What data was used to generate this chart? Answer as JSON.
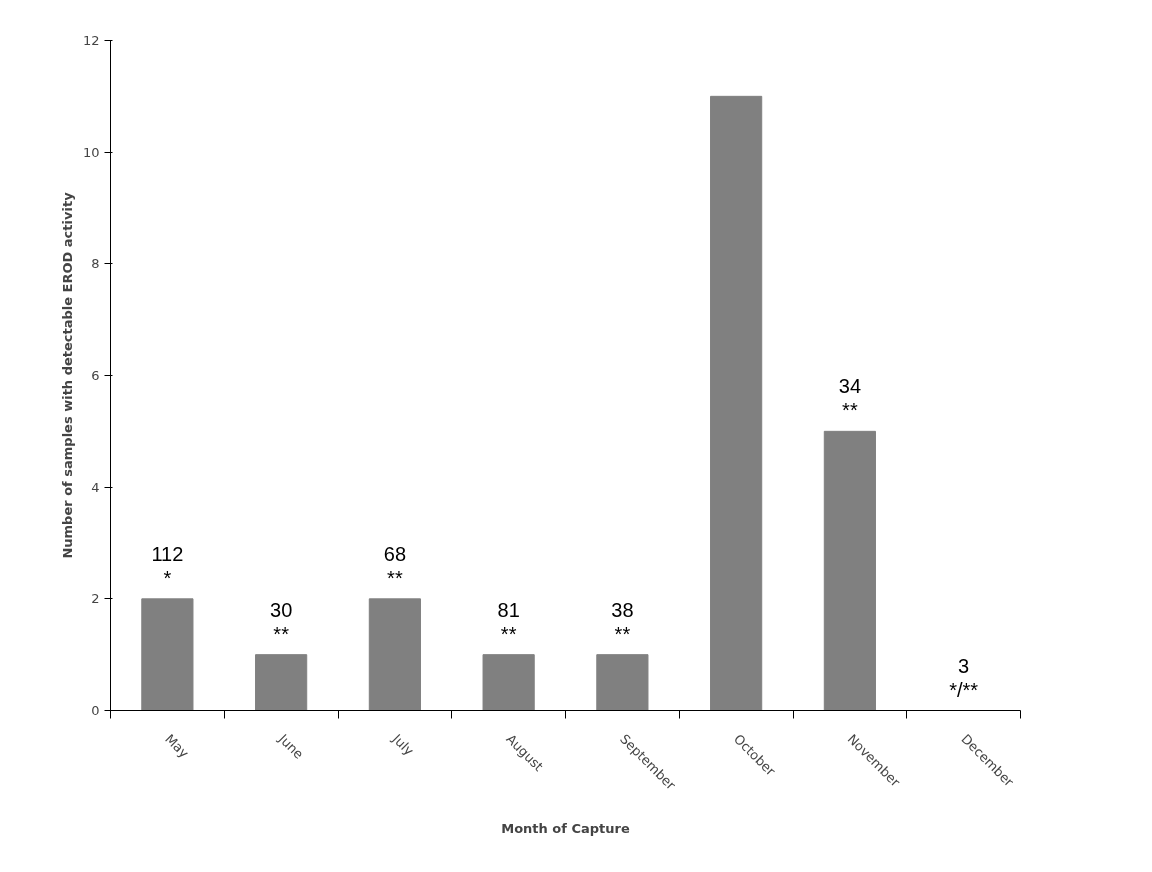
{
  "chart_data": {
    "type": "bar",
    "xlabel": "Month of Capture",
    "ylabel": "Number of samples with detectable EROD activity",
    "categories": [
      "May",
      "June",
      "July",
      "August",
      "September",
      "October",
      "November",
      "December"
    ],
    "values": [
      2,
      1,
      2,
      1,
      1,
      11,
      5,
      0
    ],
    "color": "#808080",
    "ylim": [
      0,
      12
    ],
    "yticks": [
      0,
      2,
      4,
      6,
      8,
      10,
      12
    ],
    "grid": false,
    "annotations": [
      {
        "text": "112",
        "x": "May",
        "y": 2
      },
      {
        "text": "*",
        "x": "May",
        "y": 2
      },
      {
        "text": "30",
        "x": "June",
        "y": 1
      },
      {
        "text": "**",
        "x": "June",
        "y": 1
      },
      {
        "text": "68",
        "x": "July",
        "y": 2
      },
      {
        "text": "**",
        "x": "July",
        "y": 2
      },
      {
        "text": "81",
        "x": "August",
        "y": 1
      },
      {
        "text": "**",
        "x": "August",
        "y": 1
      },
      {
        "text": "38",
        "x": "September",
        "y": 1
      },
      {
        "text": "**",
        "x": "September",
        "y": 1
      },
      {
        "text": "34",
        "x": "November",
        "y": 5
      },
      {
        "text": "**",
        "x": "November",
        "y": 5
      },
      {
        "text": "3",
        "x": "December",
        "y": 0
      },
      {
        "text": "*/**",
        "x": "December",
        "y": 0
      }
    ]
  }
}
